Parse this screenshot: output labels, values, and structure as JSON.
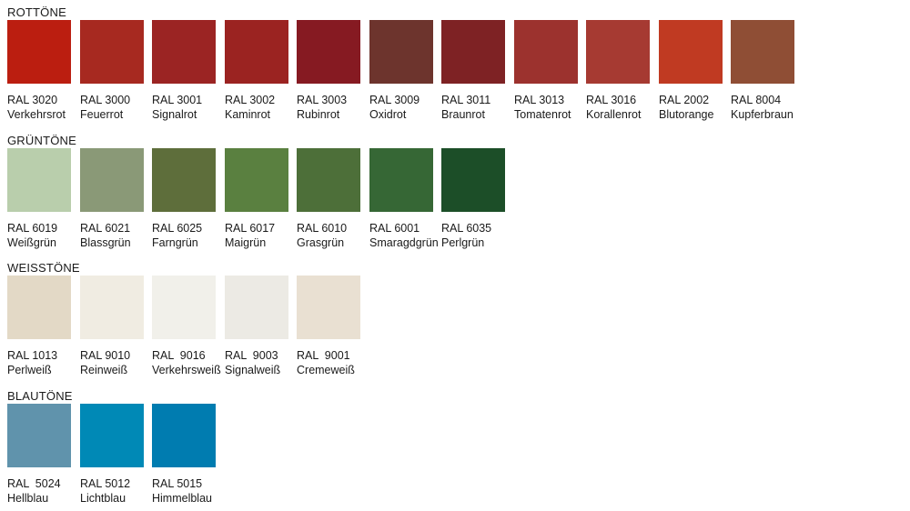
{
  "groups": [
    {
      "title": "ROTTÖNE",
      "items": [
        {
          "code": "RAL 3020",
          "name": "Verkehrsrot",
          "color": "#bb1e10"
        },
        {
          "code": "RAL 3000",
          "name": "Feuerrot",
          "color": "#a72920"
        },
        {
          "code": "RAL 3001",
          "name": "Signalrot",
          "color": "#9b2423"
        },
        {
          "code": "RAL 3002",
          "name": "Kaminrot",
          "color": "#9b2321"
        },
        {
          "code": "RAL 3003",
          "name": "Rubinrot",
          "color": "#861a22"
        },
        {
          "code": "RAL 3009",
          "name": "Oxidrot",
          "color": "#6d342d"
        },
        {
          "code": "RAL 3011",
          "name": "Braunrot",
          "color": "#7e2224"
        },
        {
          "code": "RAL 3013",
          "name": "Tomatenrot",
          "color": "#9c322e"
        },
        {
          "code": "RAL 3016",
          "name": "Korallenrot",
          "color": "#a63a32"
        },
        {
          "code": "RAL 2002",
          "name": "Blutorange",
          "color": "#c03a22"
        },
        {
          "code": "RAL 8004",
          "name": "Kupferbraun",
          "color": "#8f4e35"
        }
      ]
    },
    {
      "title": "GRÜNTÖNE",
      "items": [
        {
          "code": "RAL 6019",
          "name": "Weißgrün",
          "color": "#b9ceac"
        },
        {
          "code": "RAL 6021",
          "name": "Blassgrün",
          "color": "#8a9977"
        },
        {
          "code": "RAL 6025",
          "name": "Farngrün",
          "color": "#5e6e3b"
        },
        {
          "code": "RAL 6017",
          "name": "Maigrün",
          "color": "#5a8040"
        },
        {
          "code": "RAL 6010",
          "name": "Grasgrün",
          "color": "#4d6f39"
        },
        {
          "code": "RAL 6001",
          "name": "Smaragdgrün",
          "color": "#366735"
        },
        {
          "code": "RAL 6035",
          "name": "Perlgrün",
          "color": "#1c4e28"
        }
      ]
    },
    {
      "title": "WEISSTÖNE",
      "items": [
        {
          "code": "RAL 1013",
          "name": "Perlweiß",
          "color": "#e3d9c6"
        },
        {
          "code": "RAL 9010",
          "name": "Reinweiß",
          "color": "#f0ece2"
        },
        {
          "code": "RAL  9016",
          "name": "Verkehrsweiß",
          "color": "#f1f0ea"
        },
        {
          "code": "RAL  9003",
          "name": "Signalweiß",
          "color": "#eceae4"
        },
        {
          "code": "RAL  9001",
          "name": "Cremeweiß",
          "color": "#e9e0d2"
        }
      ]
    },
    {
      "title": "BLAUTÖNE",
      "items": [
        {
          "code": "RAL  5024",
          "name": "Hellblau",
          "color": "#6093ac"
        },
        {
          "code": "RAL 5012",
          "name": "Lichtblau",
          "color": "#0089b6"
        },
        {
          "code": "RAL 5015",
          "name": "Himmelblau",
          "color": "#007cb0"
        }
      ]
    }
  ]
}
